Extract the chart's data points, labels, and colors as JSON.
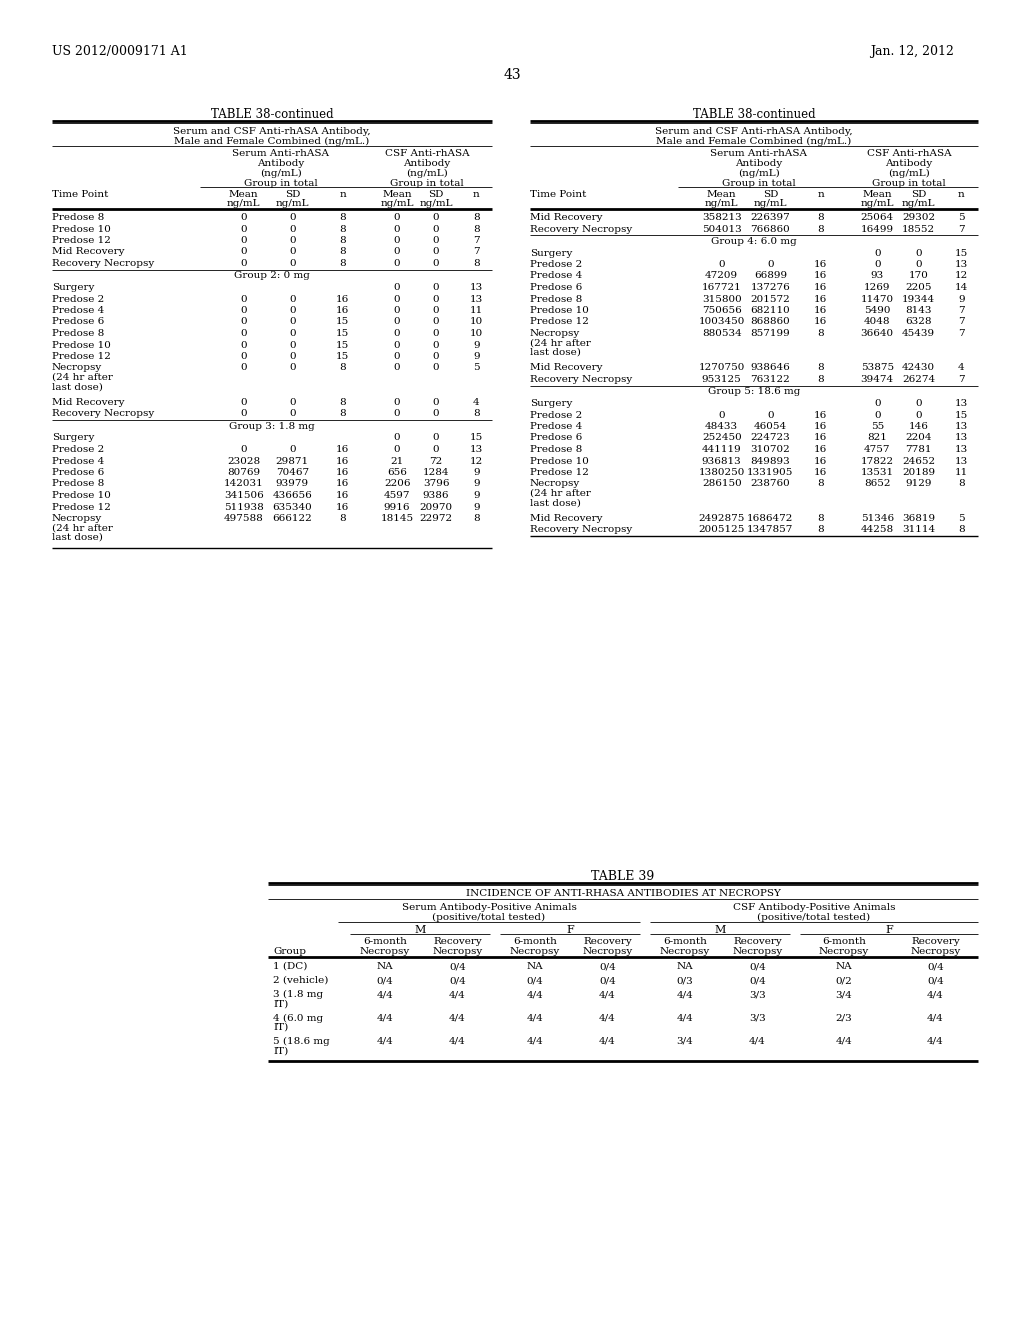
{
  "header_left": "US 2012/0009171 A1",
  "header_right": "Jan. 12, 2012",
  "page_number": "43",
  "table38_title": "TABLE 38-continued",
  "table38_subtitle1": "Serum and CSF Anti-rhASA Antibody,",
  "table38_subtitle2": "Male and Female Combined (ng/mL.)",
  "left_table_data": [
    [
      "Predose 8",
      "0",
      "0",
      "8",
      "0",
      "0",
      "8"
    ],
    [
      "Predose 10",
      "0",
      "0",
      "8",
      "0",
      "0",
      "8"
    ],
    [
      "Predose 12",
      "0",
      "0",
      "8",
      "0",
      "0",
      "7"
    ],
    [
      "Mid Recovery",
      "0",
      "0",
      "8",
      "0",
      "0",
      "7"
    ],
    [
      "Recovery Necropsy",
      "0",
      "0",
      "8",
      "0",
      "0",
      "8"
    ],
    [
      "GROUP2",
      "Group 2: 0 mg",
      "",
      "",
      "",
      "",
      ""
    ],
    [
      "Surgery",
      "",
      "",
      "",
      "0",
      "0",
      "13"
    ],
    [
      "Predose 2",
      "0",
      "0",
      "16",
      "0",
      "0",
      "13"
    ],
    [
      "Predose 4",
      "0",
      "0",
      "16",
      "0",
      "0",
      "11"
    ],
    [
      "Predose 6",
      "0",
      "0",
      "15",
      "0",
      "0",
      "10"
    ],
    [
      "Predose 8",
      "0",
      "0",
      "15",
      "0",
      "0",
      "10"
    ],
    [
      "Predose 10",
      "0",
      "0",
      "15",
      "0",
      "0",
      "9"
    ],
    [
      "Predose 12",
      "0",
      "0",
      "15",
      "0",
      "0",
      "9"
    ],
    [
      "Necropsy|(24 hr after|last dose)",
      "0",
      "0",
      "8",
      "0",
      "0",
      "5"
    ],
    [
      "Mid Recovery",
      "0",
      "0",
      "8",
      "0",
      "0",
      "4"
    ],
    [
      "Recovery Necropsy",
      "0",
      "0",
      "8",
      "0",
      "0",
      "8"
    ],
    [
      "GROUP3",
      "Group 3: 1.8 mg",
      "",
      "",
      "",
      "",
      ""
    ],
    [
      "Surgery",
      "",
      "",
      "",
      "0",
      "0",
      "15"
    ],
    [
      "Predose 2",
      "0",
      "0",
      "16",
      "0",
      "0",
      "13"
    ],
    [
      "Predose 4",
      "23028",
      "29871",
      "16",
      "21",
      "72",
      "12"
    ],
    [
      "Predose 6",
      "80769",
      "70467",
      "16",
      "656",
      "1284",
      "9"
    ],
    [
      "Predose 8",
      "142031",
      "93979",
      "16",
      "2206",
      "3796",
      "9"
    ],
    [
      "Predose 10",
      "341506",
      "436656",
      "16",
      "4597",
      "9386",
      "9"
    ],
    [
      "Predose 12",
      "511938",
      "635340",
      "16",
      "9916",
      "20970",
      "9"
    ],
    [
      "Necropsy|(24 hr after|last dose)",
      "497588",
      "666122",
      "8",
      "18145",
      "22972",
      "8"
    ]
  ],
  "right_table_data": [
    [
      "Mid Recovery",
      "358213",
      "226397",
      "8",
      "25064",
      "29302",
      "5"
    ],
    [
      "Recovery Necropsy",
      "504013",
      "766860",
      "8",
      "16499",
      "18552",
      "7"
    ],
    [
      "GROUP4",
      "Group 4: 6.0 mg",
      "",
      "",
      "",
      "",
      ""
    ],
    [
      "Surgery",
      "",
      "",
      "",
      "0",
      "0",
      "15"
    ],
    [
      "Predose 2",
      "0",
      "0",
      "16",
      "0",
      "0",
      "13"
    ],
    [
      "Predose 4",
      "47209",
      "66899",
      "16",
      "93",
      "170",
      "12"
    ],
    [
      "Predose 6",
      "167721",
      "137276",
      "16",
      "1269",
      "2205",
      "14"
    ],
    [
      "Predose 8",
      "315800",
      "201572",
      "16",
      "11470",
      "19344",
      "9"
    ],
    [
      "Predose 10",
      "750656",
      "682110",
      "16",
      "5490",
      "8143",
      "7"
    ],
    [
      "Predose 12",
      "1003450",
      "868860",
      "16",
      "4048",
      "6328",
      "7"
    ],
    [
      "Necropsy|(24 hr after|last dose)",
      "880534",
      "857199",
      "8",
      "36640",
      "45439",
      "7"
    ],
    [
      "Mid Recovery",
      "1270750",
      "938646",
      "8",
      "53875",
      "42430",
      "4"
    ],
    [
      "Recovery Necropsy",
      "953125",
      "763122",
      "8",
      "39474",
      "26274",
      "7"
    ],
    [
      "GROUP5",
      "Group 5: 18.6 mg",
      "",
      "",
      "",
      "",
      ""
    ],
    [
      "Surgery",
      "",
      "",
      "",
      "0",
      "0",
      "13"
    ],
    [
      "Predose 2",
      "0",
      "0",
      "16",
      "0",
      "0",
      "15"
    ],
    [
      "Predose 4",
      "48433",
      "46054",
      "16",
      "55",
      "146",
      "13"
    ],
    [
      "Predose 6",
      "252450",
      "224723",
      "16",
      "821",
      "2204",
      "13"
    ],
    [
      "Predose 8",
      "441119",
      "310702",
      "16",
      "4757",
      "7781",
      "13"
    ],
    [
      "Predose 10",
      "936813",
      "849893",
      "16",
      "17822",
      "24652",
      "13"
    ],
    [
      "Predose 12",
      "1380250",
      "1331905",
      "16",
      "13531",
      "20189",
      "11"
    ],
    [
      "Necropsy|(24 hr after|last dose)",
      "286150",
      "238760",
      "8",
      "8652",
      "9129",
      "8"
    ],
    [
      "Mid Recovery",
      "2492875",
      "1686472",
      "8",
      "51346",
      "36819",
      "5"
    ],
    [
      "Recovery Necropsy",
      "2005125",
      "1347857",
      "8",
      "44258",
      "31114",
      "8"
    ]
  ],
  "table39_title": "TABLE 39",
  "table39_subtitle": "INCIDENCE OF ANTI-RHASA ANTIBODIES AT NECROPSY",
  "table39_data": [
    [
      "1 (DC)",
      "NA",
      "0/4",
      "NA",
      "0/4",
      "NA",
      "0/4",
      "NA",
      "0/4"
    ],
    [
      "2 (vehicle)",
      "0/4",
      "0/4",
      "0/4",
      "0/4",
      "0/3",
      "0/4",
      "0/2",
      "0/4"
    ],
    [
      "3 (1.8 mg|IT)",
      "4/4",
      "4/4",
      "4/4",
      "4/4",
      "4/4",
      "3/3",
      "3/4",
      "4/4"
    ],
    [
      "4 (6.0 mg|IT)",
      "4/4",
      "4/4",
      "4/4",
      "4/4",
      "4/4",
      "3/3",
      "2/3",
      "4/4"
    ],
    [
      "5 (18.6 mg|IT)",
      "4/4",
      "4/4",
      "4/4",
      "4/4",
      "3/4",
      "4/4",
      "4/4",
      "4/4"
    ]
  ]
}
